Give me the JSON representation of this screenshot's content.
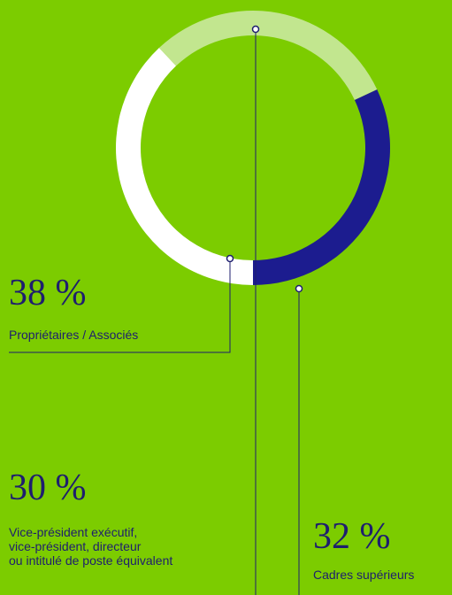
{
  "chart_data": {
    "type": "donut",
    "categories": [
      "Propriétaires / Associés",
      "Vice-président exécutif,\nvice-président, directeur\nou intitulé de poste équivalent",
      "Cadres supérieurs"
    ],
    "values": [
      38,
      30,
      32
    ],
    "value_labels": [
      "38 %",
      "30 %",
      "32 %"
    ],
    "colors": [
      "#ffffff",
      "#c2e68f",
      "#1c1c8f"
    ]
  }
}
